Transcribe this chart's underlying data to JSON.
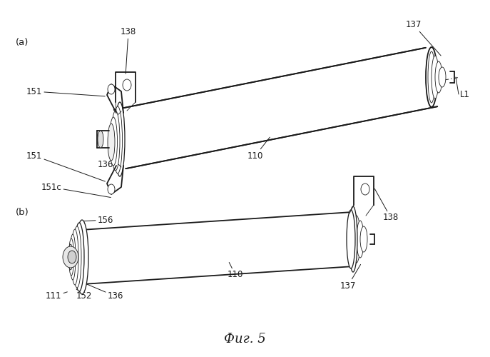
{
  "fig_width": 6.87,
  "fig_height": 5.0,
  "bg_color": "#ffffff",
  "line_color": "#1a1a1a",
  "fig_label": "Фиг. 5",
  "panel_a_label": "(a)",
  "panel_b_label": "(b)",
  "lw_main": 1.3,
  "lw_med": 0.9,
  "lw_thin": 0.6,
  "font_size": 8.5,
  "font_size_caption": 13
}
